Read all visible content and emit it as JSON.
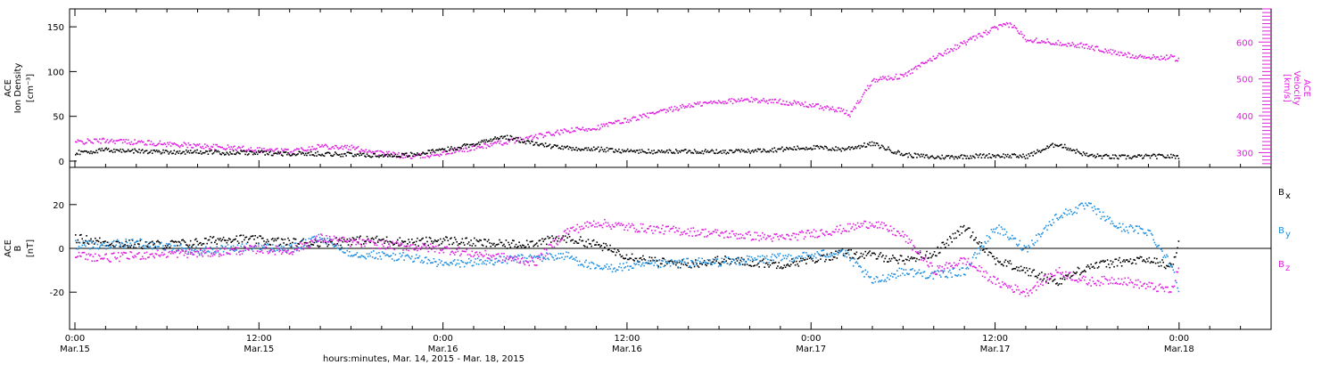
{
  "figure": {
    "xlabel": "hours:minutes, Mar. 14, 2015 - Mar. 18, 2015",
    "x_ticks": [
      {
        "t": 0,
        "time": "0:00",
        "date": "Mar.15"
      },
      {
        "t": 12,
        "time": "12:00",
        "date": "Mar.15"
      },
      {
        "t": 24,
        "time": "0:00",
        "date": "Mar.16"
      },
      {
        "t": 36,
        "time": "12:00",
        "date": "Mar.16"
      },
      {
        "t": 48,
        "time": "0:00",
        "date": "Mar.17"
      },
      {
        "t": 60,
        "time": "12:00",
        "date": "Mar.17"
      },
      {
        "t": 72,
        "time": "0:00",
        "date": "Mar.18"
      }
    ],
    "x_range_hours": [
      0,
      78
    ]
  },
  "colors": {
    "bx": "#000000",
    "by": "#1f8fe0",
    "bz": "#e020e0",
    "density": "#000000",
    "velocity": "#e020e0"
  },
  "chart_data": [
    {
      "type": "scatter",
      "panel": "solar-wind",
      "ylabel_left": [
        "ACE",
        "Ion Density",
        "[cm⁻³]"
      ],
      "ylabel_right": [
        "ACE",
        "Velocity",
        "[km/s]"
      ],
      "ylim_left": [
        -7,
        170
      ],
      "ylim_right": [
        260,
        690
      ],
      "yticks_left": [
        0,
        50,
        100,
        150
      ],
      "yticks_right": [
        300,
        400,
        500,
        600
      ],
      "series": [
        {
          "key": "density",
          "axis": "left",
          "color": "#000000",
          "x": [
            0,
            2,
            4,
            6,
            8,
            10,
            12,
            14,
            16,
            18,
            20,
            22,
            24,
            26,
            28,
            30,
            32,
            34,
            36,
            38,
            40,
            42,
            44,
            46,
            48,
            50,
            52,
            54,
            56,
            58,
            60,
            62,
            64,
            66,
            68,
            70,
            72
          ],
          "y": [
            10,
            13,
            12,
            11,
            11,
            10,
            10,
            9,
            9,
            8,
            7,
            8,
            13,
            20,
            28,
            20,
            15,
            14,
            12,
            11,
            12,
            11,
            12,
            14,
            16,
            14,
            20,
            8,
            5,
            6,
            7,
            6,
            20,
            7,
            5,
            6,
            6
          ]
        },
        {
          "key": "velocity",
          "axis": "right",
          "color": "#e020e0",
          "x": [
            0,
            2,
            4,
            6,
            8,
            10,
            12,
            14,
            16,
            18,
            20,
            22,
            24,
            26,
            28,
            30,
            32,
            34,
            36,
            38,
            40,
            42,
            44,
            46,
            48,
            50,
            50.5,
            52,
            54,
            56,
            58,
            60,
            61,
            62,
            64,
            66,
            68,
            70,
            71.5,
            72
          ],
          "y": [
            330,
            335,
            330,
            325,
            320,
            315,
            310,
            305,
            320,
            315,
            300,
            290,
            300,
            315,
            330,
            345,
            360,
            370,
            390,
            410,
            430,
            440,
            445,
            440,
            430,
            415,
            405,
            500,
            510,
            560,
            600,
            640,
            650,
            610,
            600,
            590,
            570,
            560,
            560,
            555
          ]
        }
      ]
    },
    {
      "type": "scatter",
      "panel": "magnetic-field",
      "ylabel_left": [
        "ACE",
        "B",
        "[nT]"
      ],
      "ylim": [
        -37,
        37
      ],
      "yticks": [
        -20,
        0,
        20
      ],
      "legend": [
        {
          "key": "bx",
          "label": "B",
          "sub": "x"
        },
        {
          "key": "by",
          "label": "B",
          "sub": "y"
        },
        {
          "key": "bz",
          "label": "B",
          "sub": "z"
        }
      ],
      "series": [
        {
          "key": "bx",
          "color": "#000000",
          "x": [
            0,
            2,
            4,
            6,
            8,
            10,
            12,
            14,
            16,
            18,
            20,
            22,
            24,
            26,
            28,
            30,
            32,
            34,
            36,
            38,
            40,
            42,
            44,
            46,
            48,
            50,
            52,
            54,
            56,
            58,
            60,
            62,
            64,
            66,
            68,
            70,
            71.5,
            72
          ],
          "y": [
            5,
            3,
            2,
            2,
            3,
            5,
            4,
            3,
            3,
            4,
            4,
            3,
            4,
            3,
            2,
            3,
            5,
            2,
            -3,
            -6,
            -7,
            -5,
            -6,
            -7,
            -5,
            -2,
            -3,
            -5,
            -2,
            10,
            -5,
            -10,
            -15,
            -8,
            -6,
            -5,
            -8,
            4
          ]
        },
        {
          "key": "by",
          "color": "#1f8fe0",
          "x": [
            0,
            2,
            4,
            6,
            8,
            10,
            12,
            14,
            16,
            18,
            20,
            22,
            24,
            26,
            28,
            30,
            32,
            34,
            36,
            38,
            40,
            42,
            44,
            46,
            48,
            50,
            52,
            54,
            56,
            58,
            60,
            62,
            64,
            66,
            68,
            70,
            71.5,
            72
          ],
          "y": [
            2,
            2,
            3,
            1,
            -1,
            0,
            1,
            0,
            5,
            -2,
            -3,
            -4,
            -7,
            -6,
            -5,
            -4,
            -3,
            -9,
            -8,
            -7,
            -6,
            -6,
            -5,
            -4,
            -3,
            -1,
            -15,
            -10,
            -12,
            -10,
            10,
            0,
            15,
            20,
            10,
            8,
            -8,
            -19
          ]
        },
        {
          "key": "bz",
          "color": "#e020e0",
          "x": [
            0,
            2,
            4,
            6,
            8,
            10,
            12,
            14,
            16,
            18,
            20,
            22,
            24,
            26,
            28,
            30,
            32,
            34,
            36,
            38,
            40,
            42,
            44,
            46,
            48,
            50,
            52,
            54,
            56,
            58,
            60,
            62,
            64,
            66,
            68,
            70,
            71.5,
            72
          ],
          "y": [
            -3,
            -4,
            -3,
            -2,
            -2,
            -1,
            0,
            -1,
            5,
            3,
            2,
            1,
            0,
            -2,
            -4,
            -6,
            8,
            12,
            10,
            9,
            8,
            7,
            6,
            5,
            7,
            9,
            12,
            6,
            -10,
            -5,
            -15,
            -20,
            -10,
            -15,
            -14,
            -17,
            -19,
            -7
          ]
        }
      ]
    }
  ]
}
